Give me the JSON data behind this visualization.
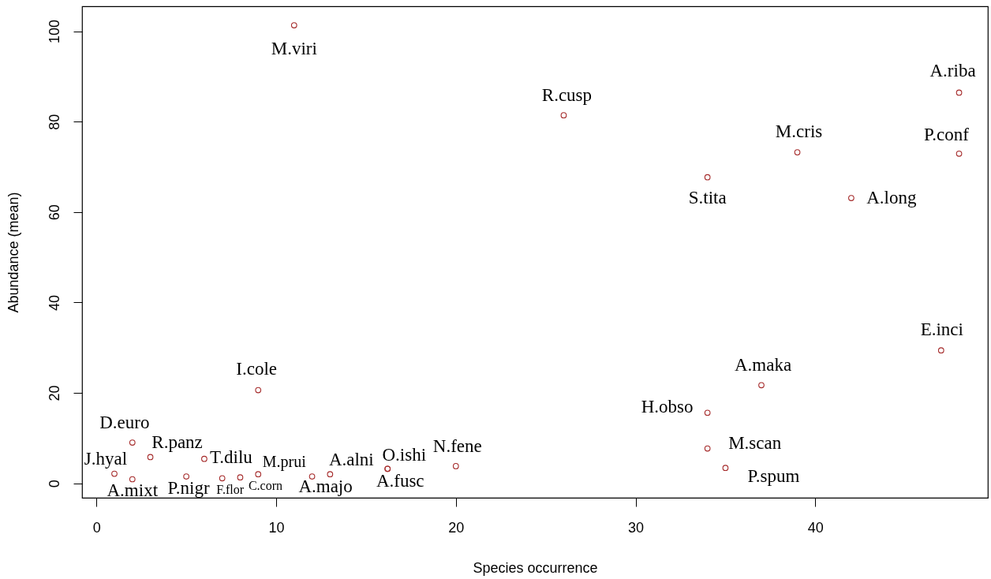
{
  "chart_data": {
    "type": "scatter",
    "xlabel": "Species occurrence",
    "ylabel": "Abundance (mean)",
    "xlim": [
      -0.8,
      49.6
    ],
    "ylim": [
      -3.2,
      105.5
    ],
    "xticks": [
      0,
      10,
      20,
      30,
      40
    ],
    "yticks": [
      0,
      20,
      40,
      60,
      80,
      100
    ],
    "marker": "circle",
    "x": [
      11,
      26,
      48,
      39,
      48,
      34,
      42,
      47,
      37,
      34,
      34,
      35,
      9,
      2,
      3,
      1,
      2,
      5,
      6,
      7,
      8,
      9,
      12,
      13,
      16.2,
      16.2,
      20
    ],
    "series": [
      {
        "color": "#a52a2a",
        "values": [
          101.3,
          81.4,
          86.4,
          73.2,
          72.9,
          67.7,
          63.1,
          29.4,
          21.7,
          15.6,
          7.7,
          3.4,
          20.6,
          9.0,
          5.8,
          2.1,
          0.9,
          1.5,
          5.4,
          1.1,
          1.3,
          2.0,
          1.5,
          2.0,
          3.2,
          3.2,
          3.8
        ]
      }
    ],
    "annotations": [
      {
        "text": "M.viri",
        "x": 11,
        "y": 101.3
      },
      {
        "text": "R.cusp",
        "x": 26,
        "y": 81.4
      },
      {
        "text": "A.riba",
        "x": 48,
        "y": 86.4
      },
      {
        "text": "M.cris",
        "x": 39,
        "y": 73.2
      },
      {
        "text": "P.conf",
        "x": 48,
        "y": 72.9
      },
      {
        "text": "S.tita",
        "x": 34,
        "y": 67.7
      },
      {
        "text": "A.long",
        "x": 42,
        "y": 63.1
      },
      {
        "text": "E.inci",
        "x": 47,
        "y": 29.4
      },
      {
        "text": "A.maka",
        "x": 37,
        "y": 21.7
      },
      {
        "text": "H.obso",
        "x": 34,
        "y": 15.6
      },
      {
        "text": "M.scan",
        "x": 34,
        "y": 7.7
      },
      {
        "text": "P.spum",
        "x": 35,
        "y": 3.4
      },
      {
        "text": "I.cole",
        "x": 9,
        "y": 20.6
      },
      {
        "text": "D.euro",
        "x": 2,
        "y": 9.0
      },
      {
        "text": "R.panz",
        "x": 3,
        "y": 5.8
      },
      {
        "text": "J.hyal",
        "x": 1,
        "y": 2.1
      },
      {
        "text": "A.mixt",
        "x": 2,
        "y": 0.9
      },
      {
        "text": "P.nigr",
        "x": 5,
        "y": 1.5
      },
      {
        "text": "T.dilu",
        "x": 6,
        "y": 5.4
      },
      {
        "text": "F.flor",
        "x": 7,
        "y": 1.1
      },
      {
        "text": "C.corn",
        "x": 8,
        "y": 1.3
      },
      {
        "text": "M.prui",
        "x": 9,
        "y": 2.0
      },
      {
        "text": "A.majo",
        "x": 12,
        "y": 1.5
      },
      {
        "text": "A.alni",
        "x": 13,
        "y": 2.0
      },
      {
        "text": "O.ishi",
        "x": 16.2,
        "y": 3.2
      },
      {
        "text": "A.fusc",
        "x": 16.2,
        "y": 3.2
      },
      {
        "text": "N.fene",
        "x": 20,
        "y": 3.8
      }
    ]
  }
}
